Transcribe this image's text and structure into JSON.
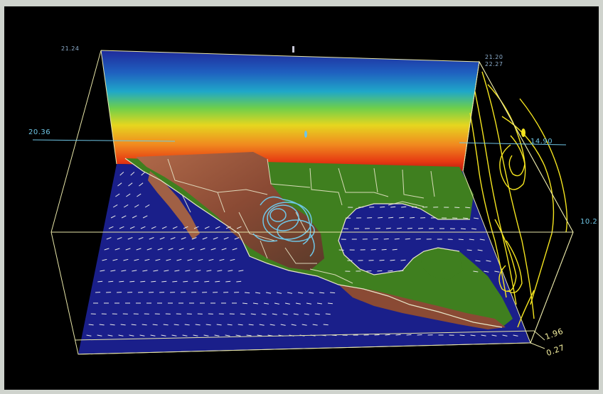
{
  "window": {
    "colors": {
      "background": "#000000",
      "frame": "#cfd3cd",
      "box_lines": "#e8e6a8",
      "ocean": "#1a1f8a",
      "land_low": "#3f7f1f",
      "land_high": "#8a4a34",
      "contour_cyan": "#6fc6e6",
      "streamline_yellow": "#f5e51f",
      "vector_white": "#e8e8e8"
    }
  },
  "visualization": {
    "labels": {
      "top_left_corner": "21.24",
      "top_right_corner_a": "21.20",
      "top_right_corner_b": "22.27",
      "left_axis_value": "20.36",
      "right_panel_value": "14.90",
      "right_edge_value": "10.2",
      "bottom_right_value_a": "1.96",
      "bottom_right_value_b": "0.27"
    },
    "panels": {
      "back_wall": "temperature-gradient",
      "right_wall": "streamlines",
      "floor": "terrain-with-wind-vectors"
    }
  }
}
